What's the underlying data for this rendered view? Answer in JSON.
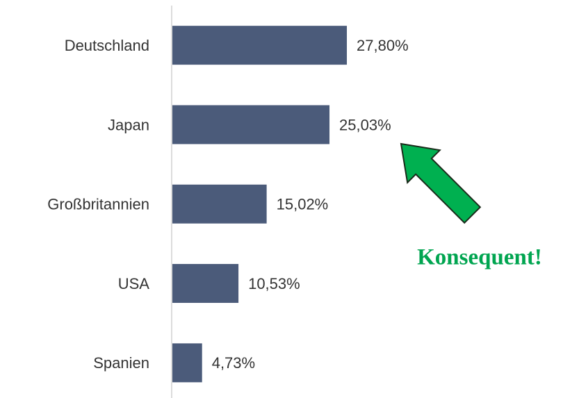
{
  "chart_data": {
    "type": "bar",
    "orientation": "horizontal",
    "categories": [
      "Deutschland",
      "Japan",
      "Großbritannien",
      "USA",
      "Spanien"
    ],
    "values": [
      27.8,
      25.03,
      15.02,
      10.53,
      4.73
    ],
    "value_labels": [
      "27,80%",
      "25,03%",
      "15,02%",
      "10,53%",
      "4,73%"
    ],
    "color": "#4b5b7a",
    "annotation": "Konsequent!"
  }
}
